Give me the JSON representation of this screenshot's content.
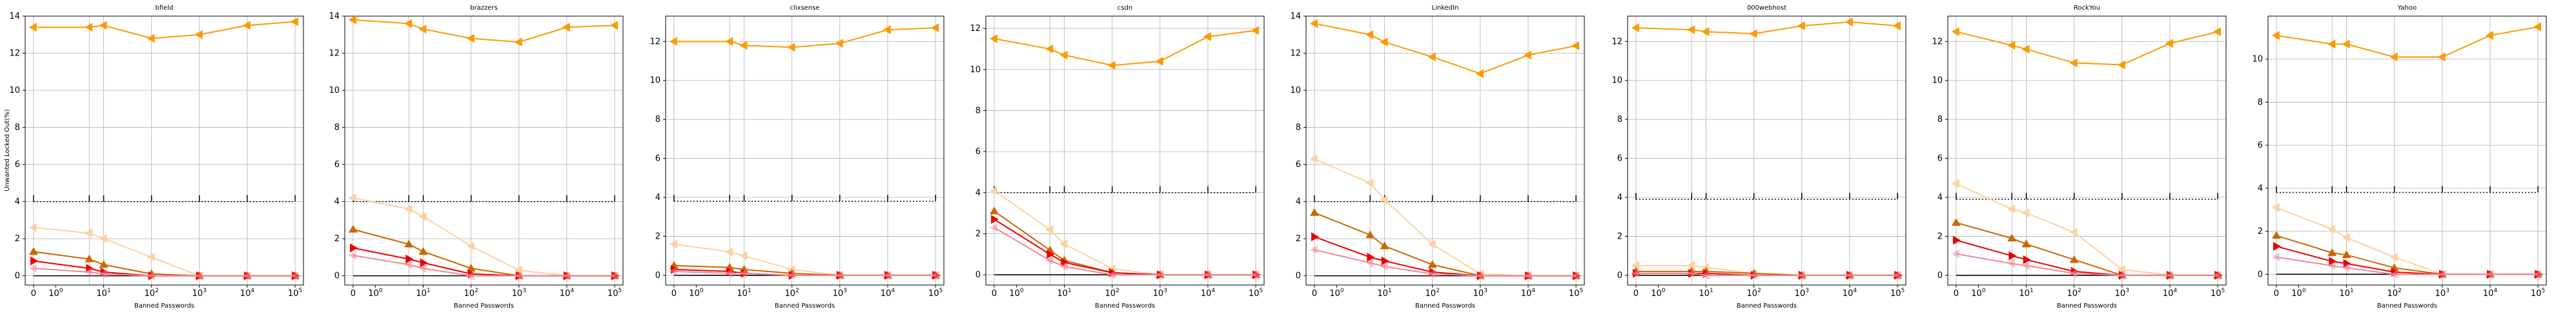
{
  "figure": {
    "ylabel": "Unwanted Locked Out(%)",
    "xlabel": "Banned Passwords",
    "xticks": [
      "0",
      "10^0",
      "10^1",
      "10^2",
      "10^3",
      "10^4",
      "10^5"
    ],
    "colors": {
      "orange": "#ff9900",
      "dark_orange": "#cc6600",
      "red": "#ee0000",
      "pink": "#ee8899",
      "light_orange": "#ffd0a0",
      "black_dotted": "#000000"
    }
  },
  "chart_data": [
    {
      "type": "line",
      "title": "bfield",
      "ylim": [
        -0.5,
        14
      ],
      "yticks": [
        0,
        2,
        4,
        6,
        8,
        10,
        12,
        14
      ],
      "x": [
        0,
        5,
        10,
        100,
        1000,
        10000,
        100000
      ],
      "series": [
        {
          "color": "orange",
          "values": [
            13.4,
            13.4,
            13.5,
            12.8,
            13.0,
            13.5,
            13.7
          ]
        },
        {
          "color": "black_dotted",
          "values": [
            4.0,
            4.0,
            4.0,
            4.0,
            4.0,
            4.0,
            4.0
          ]
        },
        {
          "color": "light_orange",
          "values": [
            2.6,
            2.3,
            2.0,
            1.0,
            0.0,
            0.0,
            0.0
          ]
        },
        {
          "color": "dark_orange",
          "values": [
            1.3,
            0.9,
            0.6,
            0.1,
            0.0,
            0.0,
            0.0
          ]
        },
        {
          "color": "red",
          "values": [
            0.8,
            0.4,
            0.2,
            0.0,
            0.0,
            0.0,
            0.0
          ]
        },
        {
          "color": "pink",
          "values": [
            0.4,
            0.2,
            0.1,
            0.0,
            0.0,
            0.0,
            0.0
          ]
        }
      ]
    },
    {
      "type": "line",
      "title": "brazzers",
      "ylim": [
        -0.5,
        14
      ],
      "yticks": [
        0,
        2,
        4,
        6,
        8,
        10,
        12,
        14
      ],
      "x": [
        0,
        5,
        10,
        100,
        1000,
        10000,
        100000
      ],
      "series": [
        {
          "color": "orange",
          "values": [
            13.8,
            13.6,
            13.3,
            12.8,
            12.6,
            13.4,
            13.5
          ]
        },
        {
          "color": "black_dotted",
          "values": [
            4.0,
            4.0,
            4.0,
            4.0,
            4.0,
            4.0,
            4.0
          ]
        },
        {
          "color": "light_orange",
          "values": [
            4.2,
            3.6,
            3.2,
            1.6,
            0.3,
            0.0,
            0.0
          ]
        },
        {
          "color": "dark_orange",
          "values": [
            2.5,
            1.7,
            1.3,
            0.4,
            0.0,
            0.0,
            0.0
          ]
        },
        {
          "color": "red",
          "values": [
            1.5,
            0.9,
            0.7,
            0.1,
            0.0,
            0.0,
            0.0
          ]
        },
        {
          "color": "pink",
          "values": [
            1.1,
            0.6,
            0.4,
            0.0,
            0.0,
            0.0,
            0.0
          ]
        }
      ]
    },
    {
      "type": "line",
      "title": "clixsense",
      "ylim": [
        -0.5,
        13.3
      ],
      "yticks": [
        0,
        2,
        4,
        6,
        8,
        10,
        12
      ],
      "x": [
        0,
        5,
        10,
        100,
        1000,
        10000,
        100000
      ],
      "series": [
        {
          "color": "orange",
          "values": [
            12.0,
            12.0,
            11.8,
            11.7,
            11.9,
            12.6,
            12.7
          ]
        },
        {
          "color": "black_dotted",
          "values": [
            3.8,
            3.8,
            3.8,
            3.8,
            3.8,
            3.8,
            3.8
          ]
        },
        {
          "color": "light_orange",
          "values": [
            1.6,
            1.2,
            1.0,
            0.3,
            0.0,
            0.0,
            0.0
          ]
        },
        {
          "color": "dark_orange",
          "values": [
            0.5,
            0.4,
            0.3,
            0.1,
            0.0,
            0.0,
            0.0
          ]
        },
        {
          "color": "red",
          "values": [
            0.3,
            0.2,
            0.1,
            0.0,
            0.0,
            0.0,
            0.0
          ]
        },
        {
          "color": "pink",
          "values": [
            0.2,
            0.1,
            0.1,
            0.0,
            0.0,
            0.0,
            0.0
          ]
        }
      ]
    },
    {
      "type": "line",
      "title": "csdn",
      "ylim": [
        -0.5,
        12.6
      ],
      "yticks": [
        0,
        2,
        4,
        6,
        8,
        10,
        12
      ],
      "x": [
        0,
        5,
        10,
        100,
        1000,
        10000,
        100000
      ],
      "series": [
        {
          "color": "orange",
          "values": [
            11.5,
            11.0,
            10.7,
            10.2,
            10.4,
            11.6,
            11.9
          ]
        },
        {
          "color": "black_dotted",
          "values": [
            4.0,
            4.0,
            4.0,
            4.0,
            4.0,
            4.0,
            4.0
          ]
        },
        {
          "color": "light_orange",
          "values": [
            4.1,
            2.2,
            1.5,
            0.3,
            0.0,
            0.0,
            0.0
          ]
        },
        {
          "color": "dark_orange",
          "values": [
            3.1,
            1.2,
            0.7,
            0.1,
            0.0,
            0.0,
            0.0
          ]
        },
        {
          "color": "red",
          "values": [
            2.7,
            1.0,
            0.6,
            0.1,
            0.0,
            0.0,
            0.0
          ]
        },
        {
          "color": "pink",
          "values": [
            2.3,
            0.7,
            0.4,
            0.0,
            0.0,
            0.0,
            0.0
          ]
        }
      ]
    },
    {
      "type": "line",
      "title": "LinkedIn",
      "ylim": [
        -0.5,
        14
      ],
      "yticks": [
        0,
        2,
        4,
        6,
        8,
        10,
        12,
        14
      ],
      "x": [
        0,
        5,
        10,
        100,
        1000,
        10000,
        100000
      ],
      "series": [
        {
          "color": "orange",
          "values": [
            13.6,
            13.0,
            12.6,
            11.8,
            10.9,
            11.9,
            12.4
          ]
        },
        {
          "color": "black_dotted",
          "values": [
            4.0,
            4.0,
            4.0,
            4.0,
            4.0,
            4.0,
            4.0
          ]
        },
        {
          "color": "light_orange",
          "values": [
            6.3,
            5.0,
            4.1,
            1.7,
            0.1,
            0.0,
            0.0
          ]
        },
        {
          "color": "dark_orange",
          "values": [
            3.4,
            2.2,
            1.6,
            0.6,
            0.0,
            0.0,
            0.0
          ]
        },
        {
          "color": "red",
          "values": [
            2.1,
            1.0,
            0.8,
            0.2,
            0.0,
            0.0,
            0.0
          ]
        },
        {
          "color": "pink",
          "values": [
            1.4,
            0.7,
            0.5,
            0.1,
            0.0,
            0.0,
            0.0
          ]
        }
      ]
    },
    {
      "type": "line",
      "title": "000webhost",
      "ylim": [
        -0.5,
        13.3
      ],
      "yticks": [
        0,
        2,
        4,
        6,
        8,
        10,
        12
      ],
      "x": [
        0,
        5,
        10,
        100,
        1000,
        10000,
        100000
      ],
      "series": [
        {
          "color": "orange",
          "values": [
            12.7,
            12.6,
            12.5,
            12.4,
            12.8,
            13.0,
            12.8
          ]
        },
        {
          "color": "black_dotted",
          "values": [
            3.9,
            3.9,
            3.9,
            3.9,
            3.9,
            3.9,
            3.9
          ]
        },
        {
          "color": "light_orange",
          "values": [
            0.5,
            0.5,
            0.4,
            0.1,
            0.0,
            0.0,
            0.0
          ]
        },
        {
          "color": "dark_orange",
          "values": [
            0.2,
            0.2,
            0.2,
            0.1,
            0.0,
            0.0,
            0.0
          ]
        },
        {
          "color": "red",
          "values": [
            0.1,
            0.1,
            0.1,
            0.0,
            0.0,
            0.0,
            0.0
          ]
        },
        {
          "color": "pink",
          "values": [
            0.1,
            0.1,
            0.0,
            0.0,
            0.0,
            0.0,
            0.0
          ]
        }
      ]
    },
    {
      "type": "line",
      "title": "RockYou",
      "ylim": [
        -0.5,
        13.3
      ],
      "yticks": [
        0,
        2,
        4,
        6,
        8,
        10,
        12
      ],
      "x": [
        0,
        5,
        10,
        100,
        1000,
        10000,
        100000
      ],
      "series": [
        {
          "color": "orange",
          "values": [
            12.5,
            11.8,
            11.6,
            10.9,
            10.8,
            11.9,
            12.5
          ]
        },
        {
          "color": "black_dotted",
          "values": [
            3.9,
            3.9,
            3.9,
            3.9,
            3.9,
            3.9,
            3.9
          ]
        },
        {
          "color": "light_orange",
          "values": [
            4.7,
            3.4,
            3.2,
            2.2,
            0.3,
            0.0,
            0.0
          ]
        },
        {
          "color": "dark_orange",
          "values": [
            2.7,
            1.9,
            1.6,
            0.8,
            0.0,
            0.0,
            0.0
          ]
        },
        {
          "color": "red",
          "values": [
            1.8,
            1.0,
            0.8,
            0.2,
            0.0,
            0.0,
            0.0
          ]
        },
        {
          "color": "pink",
          "values": [
            1.1,
            0.6,
            0.5,
            0.1,
            0.0,
            0.0,
            0.0
          ]
        }
      ]
    },
    {
      "type": "line",
      "title": "Yahoo",
      "ylim": [
        -0.5,
        12
      ],
      "yticks": [
        0,
        2,
        4,
        6,
        8,
        10
      ],
      "x": [
        0,
        5,
        10,
        100,
        1000,
        10000,
        100000
      ],
      "series": [
        {
          "color": "orange",
          "values": [
            11.1,
            10.7,
            10.7,
            10.1,
            10.1,
            11.1,
            11.5
          ]
        },
        {
          "color": "black_dotted",
          "values": [
            3.8,
            3.8,
            3.8,
            3.8,
            3.8,
            3.8,
            3.8
          ]
        },
        {
          "color": "light_orange",
          "values": [
            3.1,
            2.1,
            1.7,
            0.8,
            0.0,
            0.0,
            0.0
          ]
        },
        {
          "color": "dark_orange",
          "values": [
            1.8,
            1.0,
            0.9,
            0.3,
            0.0,
            0.0,
            0.0
          ]
        },
        {
          "color": "red",
          "values": [
            1.3,
            0.6,
            0.5,
            0.1,
            0.0,
            0.0,
            0.0
          ]
        },
        {
          "color": "pink",
          "values": [
            0.8,
            0.4,
            0.3,
            0.0,
            0.0,
            0.0,
            0.0
          ]
        }
      ]
    }
  ]
}
